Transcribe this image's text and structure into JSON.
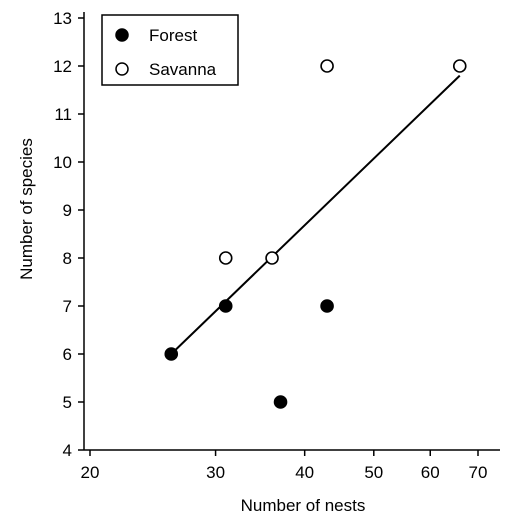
{
  "chart_data": {
    "type": "scatter",
    "title": "",
    "xlabel": "Number of nests",
    "ylabel": "Number of species",
    "x_scale": "log",
    "xlim": [
      20,
      75
    ],
    "ylim": [
      4,
      13
    ],
    "x_ticks": [
      20,
      30,
      40,
      50,
      60,
      70
    ],
    "y_ticks": [
      4,
      5,
      6,
      7,
      8,
      9,
      10,
      11,
      12,
      13
    ],
    "grid": false,
    "legend_position": "top-left",
    "series": [
      {
        "name": "Forest",
        "marker": "filled-circle",
        "color": "#000000",
        "points": [
          [
            26,
            6
          ],
          [
            31,
            7
          ],
          [
            37,
            5
          ],
          [
            43,
            7
          ]
        ]
      },
      {
        "name": "Savanna",
        "marker": "open-circle",
        "color": "#000000",
        "points": [
          [
            31,
            8
          ],
          [
            36,
            8
          ],
          [
            43,
            12
          ],
          [
            66,
            12
          ]
        ]
      }
    ],
    "trendline": {
      "from": [
        26,
        6
      ],
      "to": [
        66,
        11.8
      ]
    }
  }
}
